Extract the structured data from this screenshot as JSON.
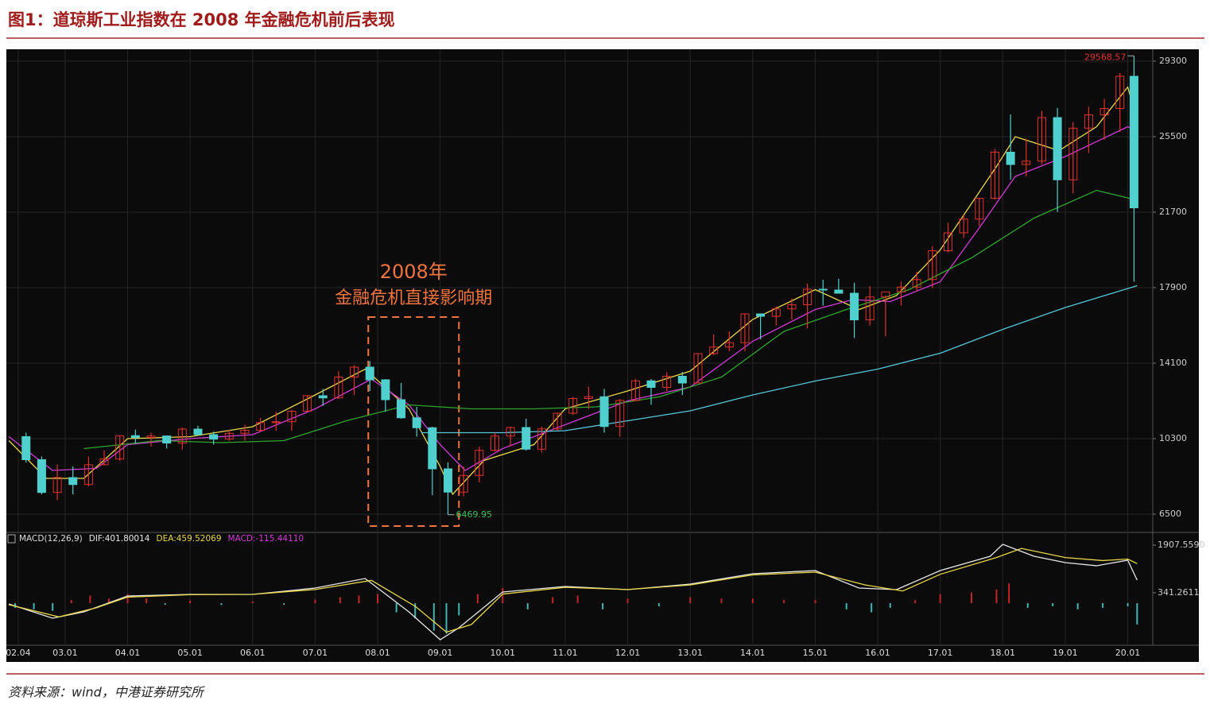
{
  "header": {
    "title": "图1：道琼斯工业指数在 2008 年金融危机前后表现"
  },
  "source": "资料来源：wind，中港证券研究所",
  "chart_data": [
    {
      "type": "candlestick",
      "xlim": [
        2002.06,
        2020.4
      ],
      "xticks": [
        {
          "value": 2002.25,
          "label": "02.04"
        },
        {
          "value": 2003,
          "label": "03.01"
        },
        {
          "value": 2004,
          "label": "04.01"
        },
        {
          "value": 2005,
          "label": "05.01"
        },
        {
          "value": 2006,
          "label": "06.01"
        },
        {
          "value": 2007,
          "label": "07.01"
        },
        {
          "value": 2008,
          "label": "08.01"
        },
        {
          "value": 2009,
          "label": "09.01"
        },
        {
          "value": 2010,
          "label": "10.01"
        },
        {
          "value": 2011,
          "label": "11.01"
        },
        {
          "value": 2012,
          "label": "12.01"
        },
        {
          "value": 2013,
          "label": "13.01"
        },
        {
          "value": 2014,
          "label": "14.01"
        },
        {
          "value": 2015,
          "label": "15.01"
        },
        {
          "value": 2016,
          "label": "16.01"
        },
        {
          "value": 2017,
          "label": "17.01"
        },
        {
          "value": 2018,
          "label": "18.01"
        },
        {
          "value": 2019,
          "label": "19.01"
        },
        {
          "value": 2020,
          "label": "20.01"
        }
      ],
      "ylim": [
        5660,
        29900
      ],
      "yticks": [
        6500,
        10300,
        14100,
        17900,
        21700,
        25500,
        29300
      ],
      "grid": true,
      "up_color": "#e0302c",
      "down_color": "#4fd0cf",
      "x": [
        2002.375,
        2002.625,
        2002.875,
        2003.125,
        2003.375,
        2003.625,
        2003.875,
        2004.125,
        2004.375,
        2004.625,
        2004.875,
        2005.125,
        2005.375,
        2005.625,
        2005.875,
        2006.125,
        2006.375,
        2006.625,
        2006.875,
        2007.125,
        2007.375,
        2007.625,
        2007.875,
        2008.125,
        2008.375,
        2008.625,
        2008.875,
        2009.125,
        2009.375,
        2009.625,
        2009.875,
        2010.125,
        2010.375,
        2010.625,
        2010.875,
        2011.125,
        2011.375,
        2011.625,
        2011.875,
        2012.125,
        2012.375,
        2012.625,
        2012.875,
        2013.125,
        2013.375,
        2013.625,
        2013.875,
        2014.125,
        2014.375,
        2014.625,
        2014.875,
        2015.125,
        2015.375,
        2015.625,
        2015.875,
        2016.125,
        2016.375,
        2016.625,
        2016.875,
        2017.125,
        2017.375,
        2017.625,
        2017.875,
        2018.125,
        2018.375,
        2018.625,
        2018.875,
        2019.125,
        2019.375,
        2019.625,
        2019.875,
        2020.1
      ],
      "open": [
        10400,
        9240,
        7590,
        8340,
        7990,
        8985,
        9275,
        10450,
        10360,
        10435,
        10080,
        10780,
        10500,
        10275,
        10570,
        10720,
        11110,
        11150,
        11680,
        12460,
        12350,
        13400,
        13900,
        13260,
        12260,
        11350,
        10850,
        8780,
        7610,
        8450,
        9710,
        10430,
        10860,
        9770,
        10790,
        11580,
        12320,
        12410,
        10910,
        12220,
        13210,
        12880,
        13440,
        13100,
        14580,
        14910,
        15130,
        16580,
        16460,
        16830,
        17040,
        17820,
        17780,
        17620,
        16280,
        17430,
        17690,
        17930,
        18310,
        19760,
        20660,
        21350,
        22400,
        24720,
        24100,
        24270,
        26460,
        23330,
        25930,
        26600,
        26920,
        28540
      ],
      "high": [
        10600,
        9400,
        9000,
        8900,
        9400,
        9700,
        10450,
        10750,
        10600,
        10450,
        10850,
        10950,
        10650,
        10750,
        11000,
        11350,
        11650,
        11750,
        12500,
        12800,
        13700,
        14000,
        14200,
        13300,
        13100,
        11900,
        10900,
        9100,
        8900,
        9900,
        10600,
        10900,
        11300,
        10900,
        11600,
        12400,
        12900,
        12800,
        12300,
        13300,
        13300,
        13650,
        13650,
        14600,
        15550,
        15700,
        16600,
        16600,
        16950,
        17350,
        18100,
        18300,
        18350,
        18150,
        17980,
        17500,
        18200,
        18700,
        19990,
        21170,
        21550,
        22420,
        24880,
        26620,
        25400,
        26800,
        26950,
        26240,
        27000,
        27400,
        28700,
        29568.57
      ],
      "low": [
        9100,
        7500,
        7200,
        7500,
        7900,
        8950,
        9200,
        10050,
        9900,
        9800,
        9750,
        10450,
        10000,
        10200,
        10200,
        10650,
        10700,
        10700,
        11650,
        11950,
        12300,
        12500,
        12700,
        11650,
        11300,
        10400,
        7450,
        6469.95,
        7400,
        8100,
        9650,
        9900,
        9700,
        9600,
        10700,
        11500,
        11800,
        10600,
        10400,
        12200,
        12000,
        12700,
        12500,
        13100,
        14500,
        14700,
        14700,
        15300,
        16000,
        16300,
        15850,
        17000,
        17600,
        15370,
        16000,
        15450,
        17000,
        17700,
        17880,
        19680,
        20400,
        21000,
        22330,
        23340,
        23500,
        24100,
        21710,
        22640,
        24680,
        25340,
        25740,
        18200
      ],
      "close": [
        9240,
        7590,
        8340,
        7990,
        8985,
        9275,
        10450,
        10360,
        10435,
        10080,
        10780,
        10500,
        10275,
        10570,
        10720,
        11110,
        11150,
        11680,
        12460,
        12350,
        13400,
        13900,
        13260,
        12260,
        11350,
        10850,
        8780,
        7610,
        8450,
        9710,
        10430,
        10860,
        9770,
        10790,
        11580,
        12320,
        12410,
        10910,
        12220,
        13210,
        12880,
        13440,
        13100,
        14580,
        14910,
        15130,
        16580,
        16460,
        16830,
        17040,
        17820,
        17780,
        17620,
        16280,
        17430,
        17690,
        17930,
        18310,
        19760,
        20660,
        21350,
        22400,
        24720,
        24100,
        24270,
        26460,
        23330,
        25930,
        26600,
        26920,
        28540,
        21920
      ],
      "max_color": "#e0302c",
      "min_color": "#3bbf5a",
      "lines": [
        {
          "color": "#e8d84a",
          "x": [
            2002.1,
            2002.7,
            2003.3,
            2004,
            2005,
            2006,
            2007,
            2007.8,
            2008.5,
            2009,
            2009.2,
            2009.7,
            2010.5,
            2011,
            2012,
            2013,
            2014,
            2015,
            2015.7,
            2016.3,
            2017,
            2017.9,
            2018.2,
            2018.9,
            2019.5,
            2020,
            2020.15
          ],
          "values": [
            10200,
            8300,
            8300,
            10300,
            10400,
            10900,
            12500,
            13800,
            11800,
            8900,
            7500,
            9200,
            10000,
            11800,
            12700,
            13700,
            16300,
            17800,
            16800,
            17500,
            19800,
            24000,
            25500,
            24800,
            26000,
            28000,
            26300
          ]
        },
        {
          "color": "#d13bd6",
          "x": [
            2002.1,
            2002.8,
            2003.5,
            2004,
            2005,
            2006,
            2007,
            2007.9,
            2008.5,
            2009,
            2009.4,
            2010,
            2011,
            2012,
            2013,
            2014,
            2015,
            2015.6,
            2016.2,
            2017,
            2017.6,
            2018.2,
            2019,
            2020,
            2020.15
          ],
          "values": [
            10400,
            8700,
            8800,
            10000,
            10300,
            10500,
            11800,
            13300,
            12000,
            10000,
            8700,
            9800,
            11000,
            12200,
            12900,
            15200,
            16800,
            17300,
            17200,
            18200,
            20800,
            23500,
            24500,
            26000,
            25800
          ]
        },
        {
          "color": "#2fa52f",
          "x": [
            2003.3,
            2004.5,
            2005.5,
            2006.5,
            2007.5,
            2008.5,
            2009.5,
            2010.5,
            2011.5,
            2012.5,
            2013.5,
            2014.5,
            2015.5,
            2016.5,
            2017.5,
            2018.5,
            2019.5,
            2020.15
          ],
          "values": [
            9800,
            10200,
            10100,
            10200,
            11200,
            12000,
            11800,
            11800,
            11900,
            12400,
            13400,
            15700,
            16800,
            17800,
            19400,
            21400,
            22800,
            22300
          ]
        },
        {
          "color": "#54c8d6",
          "x": [
            2008.7,
            2010,
            2011,
            2012,
            2013,
            2014,
            2015,
            2016,
            2017,
            2018,
            2019,
            2020.15
          ],
          "values": [
            10600,
            10600,
            10700,
            11200,
            11700,
            12500,
            13200,
            13800,
            14600,
            15800,
            16900,
            18000
          ]
        }
      ],
      "highlight": {
        "line1": "2008年",
        "line2": "金融危机直接影响期",
        "xrange": [
          2007.85,
          2009.3
        ],
        "color": "#f0743f"
      }
    },
    {
      "type": "macd",
      "header": "MACD(12,26,9)",
      "xlim": [
        2002.06,
        2020.4
      ],
      "ylim": [
        -1277,
        2273
      ],
      "yticks": [
        {
          "value": 341.2611,
          "label": "341.2611"
        },
        {
          "value": 1907.559,
          "label": "1907.5590"
        }
      ],
      "series": [
        {
          "name": "DIF:401.80014",
          "color": "#e8e8e8",
          "x": [
            2002.1,
            2002.8,
            2003.3,
            2004,
            2005,
            2006,
            2007,
            2007.8,
            2008.5,
            2009,
            2009.3,
            2010,
            2011,
            2012,
            2013,
            2014,
            2015,
            2015.7,
            2016.3,
            2017,
            2017.8,
            2018,
            2018.5,
            2019,
            2019.5,
            2020,
            2020.15
          ],
          "values": [
            -25,
            -494,
            -285,
            237,
            289,
            289,
            498,
            811,
            -285,
            -1199,
            -807,
            367,
            550,
            446,
            628,
            967,
            1072,
            498,
            446,
            1072,
            1542,
            1933,
            1542,
            1333,
            1230,
            1411,
            759
          ]
        },
        {
          "name": "DEA:459.52069",
          "color": "#e8d84a",
          "x": [
            2002.1,
            2002.9,
            2003.5,
            2004,
            2005,
            2006,
            2007,
            2007.9,
            2008.6,
            2009.1,
            2009.5,
            2010,
            2011,
            2012,
            2013,
            2014,
            2015,
            2015.8,
            2016.4,
            2017,
            2017.9,
            2018.3,
            2019,
            2019.6,
            2020,
            2020.15
          ],
          "values": [
            -50,
            -450,
            -150,
            200,
            280,
            290,
            450,
            750,
            -100,
            -950,
            -700,
            300,
            520,
            450,
            600,
            930,
            1020,
            600,
            400,
            950,
            1500,
            1800,
            1500,
            1400,
            1450,
            1300
          ]
        }
      ],
      "histogram": {
        "name": "MACD:-115.44110",
        "color": "#d43bd6",
        "up_color": "#c0262a",
        "down_color": "#3fb7b7",
        "x": [
          2002.2,
          2002.5,
          2002.8,
          2003.1,
          2003.4,
          2003.7,
          2004,
          2004.3,
          2004.6,
          2005,
          2005.5,
          2006,
          2006.5,
          2007,
          2007.4,
          2007.7,
          2008,
          2008.3,
          2008.6,
          2008.9,
          2009.1,
          2009.3,
          2009.6,
          2010,
          2010.4,
          2010.8,
          2011.2,
          2011.6,
          2012,
          2012.5,
          2013,
          2013.5,
          2014,
          2014.5,
          2015,
          2015.5,
          2015.9,
          2016.2,
          2016.6,
          2017,
          2017.5,
          2017.9,
          2018.1,
          2018.4,
          2018.8,
          2019.2,
          2019.6,
          2020,
          2020.15
        ],
        "values": [
          -150,
          -200,
          -250,
          100,
          250,
          150,
          300,
          150,
          -50,
          80,
          -60,
          60,
          -50,
          120,
          200,
          250,
          300,
          -300,
          -500,
          -900,
          -1000,
          -400,
          300,
          500,
          -200,
          200,
          250,
          -200,
          150,
          -100,
          200,
          150,
          150,
          100,
          100,
          -200,
          -300,
          -150,
          100,
          300,
          350,
          450,
          650,
          -150,
          -100,
          -200,
          -150,
          -100,
          -700
        ]
      }
    }
  ]
}
